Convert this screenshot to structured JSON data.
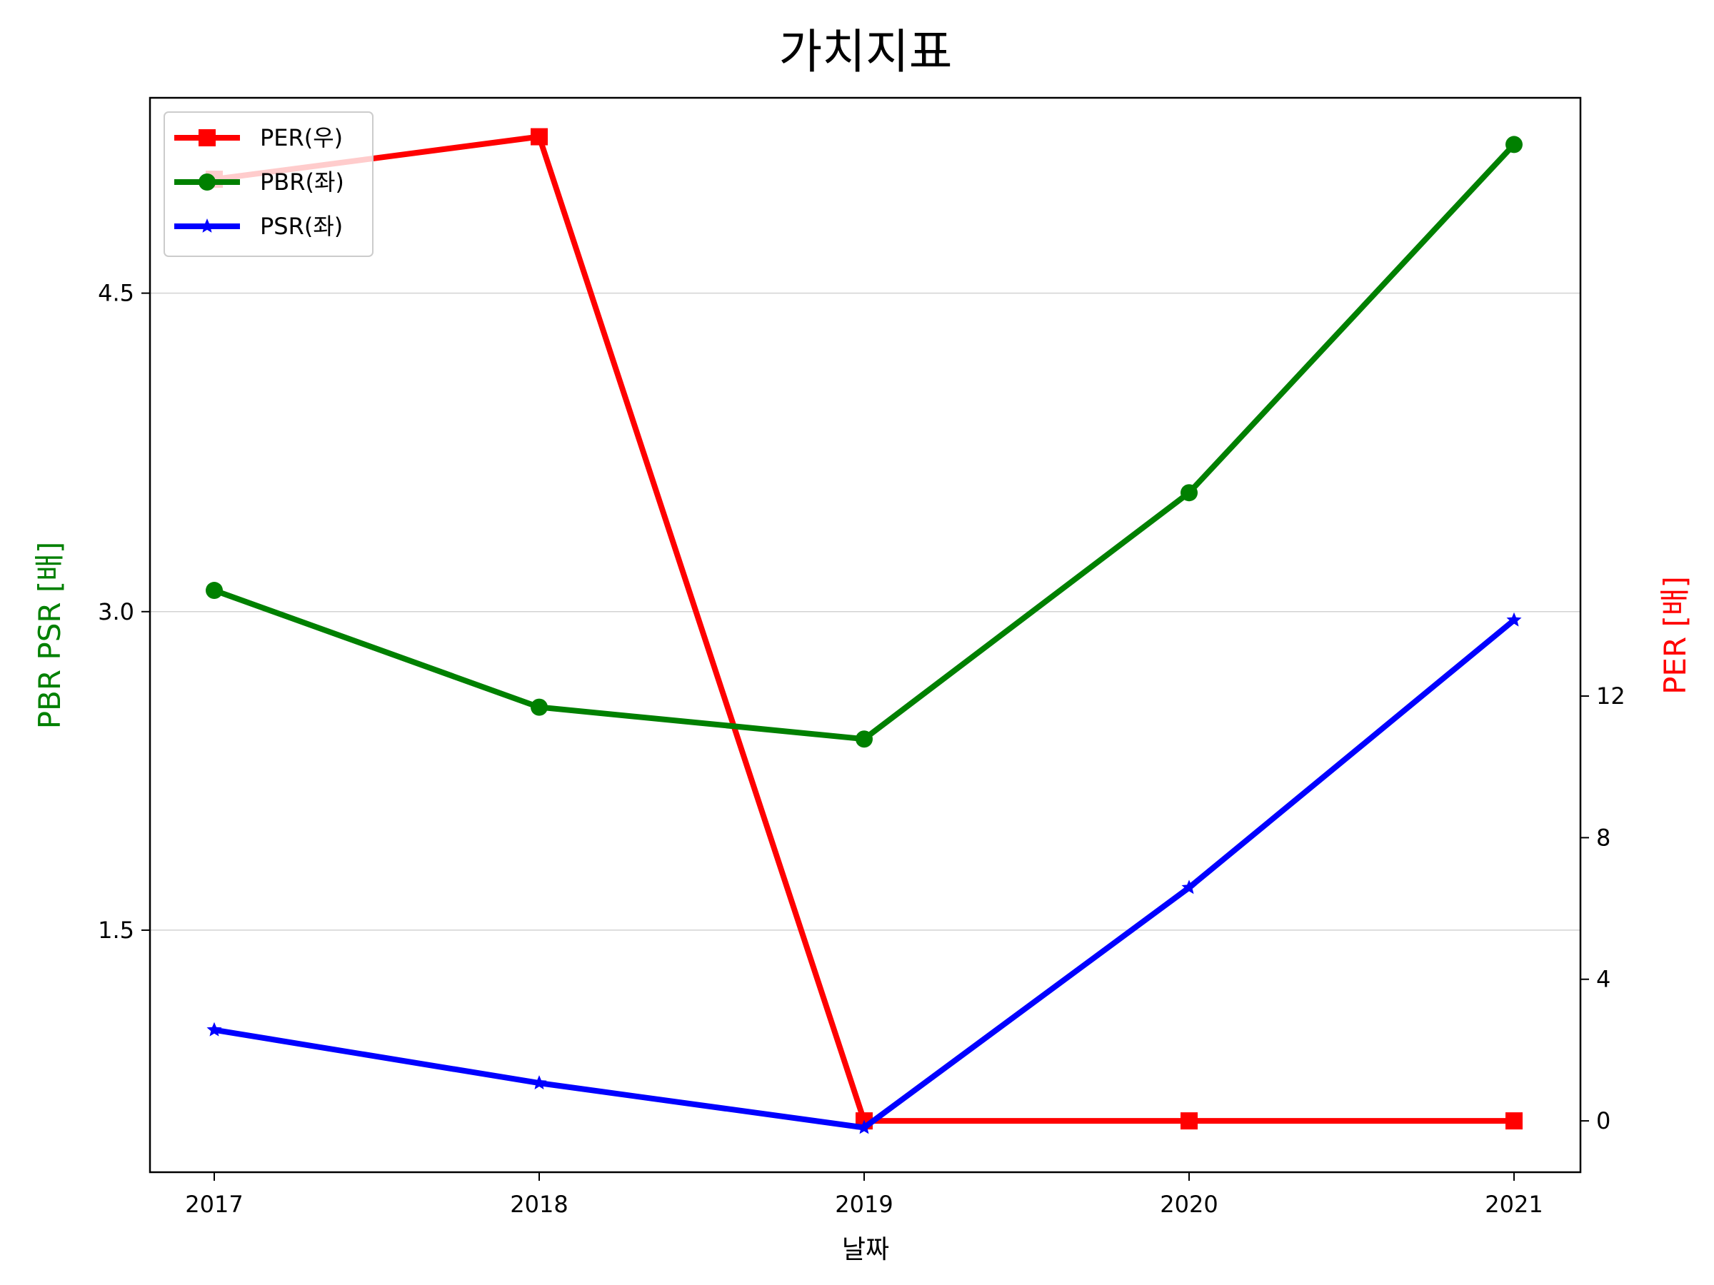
{
  "chart_data": {
    "type": "line",
    "title": "가치지표",
    "xlabel": "날짜",
    "ylabel_left": "PBR PSR [배]",
    "ylabel_right": "PER [배]",
    "categories": [
      "2017",
      "2018",
      "2019",
      "2020",
      "2021"
    ],
    "ylim_left": [
      0.36,
      5.42
    ],
    "yticks_left": [
      "1.5",
      "3.0",
      "4.5"
    ],
    "ylim_right": [
      -1.45,
      28.9
    ],
    "yticks_right": [
      "0",
      "4",
      "8",
      "12"
    ],
    "legend_position": "top-left",
    "grid": "horizontal (left axis)",
    "series": [
      {
        "name": "PER(우)",
        "axis": "right",
        "color": "#ff0000",
        "marker": "square",
        "values": [
          26.6,
          27.8,
          0,
          0,
          0
        ]
      },
      {
        "name": "PBR(좌)",
        "axis": "left",
        "color": "#008000",
        "marker": "circle",
        "values": [
          3.1,
          2.55,
          2.4,
          3.56,
          5.2
        ]
      },
      {
        "name": "PSR(좌)",
        "axis": "left",
        "color": "#0000ff",
        "marker": "star",
        "values": [
          1.03,
          0.78,
          0.57,
          1.7,
          2.96
        ]
      }
    ]
  }
}
